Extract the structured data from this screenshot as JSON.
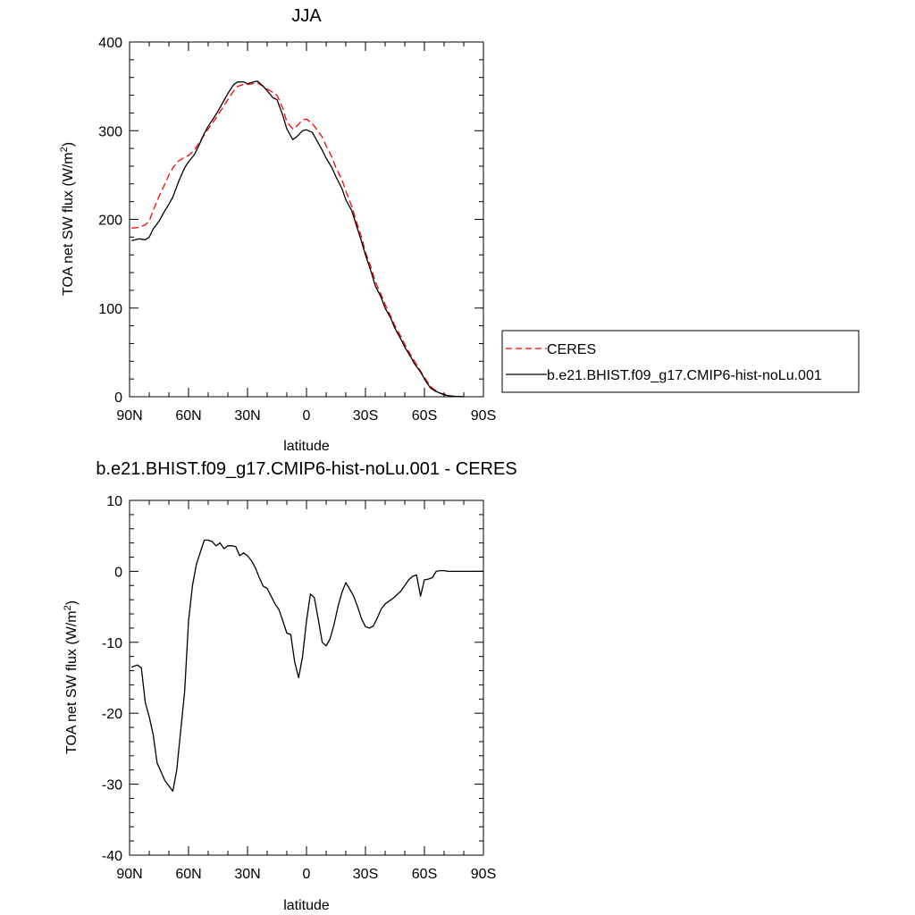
{
  "chart_data": [
    {
      "type": "line",
      "title": "JJA",
      "xlabel": "latitude",
      "ylabel_main": "TOA net SW flux (W/m",
      "ylabel_sup": "2",
      "ylabel_close": ")",
      "xlim": [
        90,
        -90
      ],
      "ylim": [
        0,
        400
      ],
      "xticks": [
        {
          "value": 90,
          "label": "90N"
        },
        {
          "value": 60,
          "label": "60N"
        },
        {
          "value": 30,
          "label": "30N"
        },
        {
          "value": 0,
          "label": "0"
        },
        {
          "value": -30,
          "label": "30S"
        },
        {
          "value": -60,
          "label": "60S"
        },
        {
          "value": -90,
          "label": "90S"
        }
      ],
      "yticks": [
        {
          "value": 0,
          "label": "0"
        },
        {
          "value": 100,
          "label": "100"
        },
        {
          "value": 200,
          "label": "200"
        },
        {
          "value": 300,
          "label": "300"
        },
        {
          "value": 400,
          "label": "400"
        }
      ],
      "legend": "right, outside plot",
      "series": [
        {
          "name": "CERES",
          "color": "#ff0000",
          "dash": "dashed",
          "x": [
            89,
            85,
            82,
            80,
            78,
            75,
            72,
            70,
            68,
            65,
            62,
            60,
            57,
            55,
            52,
            50,
            47,
            45,
            42,
            40,
            37,
            35,
            32,
            30,
            27,
            25,
            22,
            20,
            17,
            15,
            12,
            10,
            7,
            5,
            2,
            0,
            -3,
            -5,
            -8,
            -10,
            -13,
            -15,
            -18,
            -20,
            -23,
            -25,
            -28,
            -30,
            -33,
            -35,
            -38,
            -40,
            -43,
            -45,
            -48,
            -50,
            -53,
            -55,
            -58,
            -60,
            -63,
            -65,
            -68,
            -70,
            -73,
            -75,
            -78,
            -80
          ],
          "y": [
            190,
            191,
            194,
            198,
            210,
            226,
            240,
            250,
            258,
            266,
            270,
            272,
            278,
            285,
            295,
            302,
            311,
            318,
            328,
            335,
            345,
            350,
            352,
            352,
            353,
            354,
            350,
            347,
            343,
            340,
            325,
            310,
            302,
            305,
            312,
            313,
            308,
            302,
            293,
            283,
            270,
            258,
            245,
            232,
            215,
            200,
            180,
            163,
            145,
            130,
            115,
            104,
            90,
            80,
            68,
            59,
            47,
            40,
            29,
            22,
            12,
            8,
            4,
            3,
            1,
            0.5,
            0.2,
            0
          ]
        },
        {
          "name": "b.e21.BHIST.f09_g17.CMIP6-hist-noLu.001",
          "color": "#000000",
          "dash": "solid",
          "x": [
            89,
            85,
            82,
            80,
            78,
            75,
            72,
            70,
            68,
            65,
            62,
            60,
            57,
            55,
            52,
            50,
            47,
            45,
            42,
            40,
            37,
            35,
            32,
            30,
            27,
            25,
            22,
            20,
            17,
            15,
            12,
            10,
            7,
            5,
            2,
            0,
            -3,
            -5,
            -8,
            -10,
            -13,
            -15,
            -18,
            -20,
            -23,
            -25,
            -28,
            -30,
            -33,
            -35,
            -38,
            -40,
            -43,
            -45,
            -48,
            -50,
            -53,
            -55,
            -58,
            -60,
            -63,
            -65,
            -68,
            -70,
            -73,
            -75,
            -78,
            -80
          ],
          "y": [
            176,
            178,
            177,
            180,
            189,
            198,
            210,
            217,
            225,
            243,
            258,
            265,
            273,
            282,
            297,
            305,
            315,
            322,
            334,
            342,
            352,
            355,
            355,
            353,
            355,
            356,
            350,
            345,
            337,
            335,
            317,
            302,
            290,
            293,
            300,
            301,
            298,
            290,
            278,
            269,
            258,
            248,
            235,
            222,
            210,
            196,
            175,
            160,
            140,
            125,
            112,
            100,
            88,
            77,
            65,
            56,
            45,
            37,
            28,
            20,
            10,
            7,
            4,
            2,
            1,
            0.5,
            0.2,
            0
          ]
        }
      ]
    },
    {
      "type": "line",
      "title": "b.e21.BHIST.f09_g17.CMIP6-hist-noLu.001 - CERES",
      "xlabel": "latitude",
      "ylabel_main": "TOA net SW flux (W/m",
      "ylabel_sup": "2",
      "ylabel_close": ")",
      "xlim": [
        90,
        -90
      ],
      "ylim": [
        -40,
        10
      ],
      "xticks": [
        {
          "value": 90,
          "label": "90N"
        },
        {
          "value": 60,
          "label": "60N"
        },
        {
          "value": 30,
          "label": "30N"
        },
        {
          "value": 0,
          "label": "0"
        },
        {
          "value": -30,
          "label": "30S"
        },
        {
          "value": -60,
          "label": "60S"
        },
        {
          "value": -90,
          "label": "90S"
        }
      ],
      "yticks": [
        {
          "value": -40,
          "label": "-40"
        },
        {
          "value": -30,
          "label": "-30"
        },
        {
          "value": -20,
          "label": "-20"
        },
        {
          "value": -10,
          "label": "-10"
        },
        {
          "value": 0,
          "label": "0"
        },
        {
          "value": 10,
          "label": "10"
        }
      ],
      "series": [
        {
          "name": "",
          "color": "#000000",
          "dash": "solid",
          "x": [
            89,
            86,
            84,
            82,
            80,
            78,
            76,
            72,
            68,
            66,
            62,
            60,
            58,
            56,
            52,
            50,
            48,
            46,
            44,
            42,
            40,
            38,
            36,
            34,
            32,
            30,
            28,
            26,
            24,
            22,
            20,
            18,
            16,
            14,
            12,
            10,
            8,
            6,
            4,
            2,
            0,
            -2,
            -4,
            -6,
            -8,
            -10,
            -12,
            -14,
            -16,
            -18,
            -20,
            -22,
            -24,
            -26,
            -28,
            -30,
            -32,
            -34,
            -36,
            -38,
            -40,
            -42,
            -44,
            -46,
            -48,
            -50,
            -52,
            -54,
            -56,
            -58,
            -60,
            -62,
            -64,
            -66,
            -68,
            -70,
            -72,
            -74,
            -76,
            -80,
            -84,
            -90
          ],
          "y": [
            -13.5,
            -13.2,
            -13.6,
            -18.5,
            -20.5,
            -23.0,
            -27.0,
            -29.5,
            -31.0,
            -28.0,
            -17.0,
            -7.0,
            -2.0,
            1.0,
            4.4,
            4.4,
            4.2,
            3.6,
            4.0,
            3.2,
            3.6,
            3.6,
            3.5,
            2.2,
            2.6,
            2.2,
            1.5,
            0.5,
            -0.9,
            -2.1,
            -2.4,
            -3.5,
            -4.6,
            -5.4,
            -7.0,
            -8.7,
            -8.9,
            -12.8,
            -15.0,
            -12.0,
            -7.0,
            -3.2,
            -3.7,
            -6.8,
            -10.0,
            -10.5,
            -9.5,
            -7.5,
            -5.0,
            -3.0,
            -1.6,
            -2.5,
            -3.5,
            -5.0,
            -6.7,
            -7.8,
            -8.0,
            -7.7,
            -6.6,
            -5.3,
            -4.6,
            -4.2,
            -3.8,
            -3.3,
            -2.8,
            -2.0,
            -1.2,
            -0.7,
            -0.5,
            -3.5,
            -1.2,
            -1.1,
            -0.9,
            0.0,
            0.1,
            0.1,
            0.0,
            0.0,
            0.0,
            0.0,
            0.0,
            0.0
          ]
        }
      ]
    }
  ]
}
